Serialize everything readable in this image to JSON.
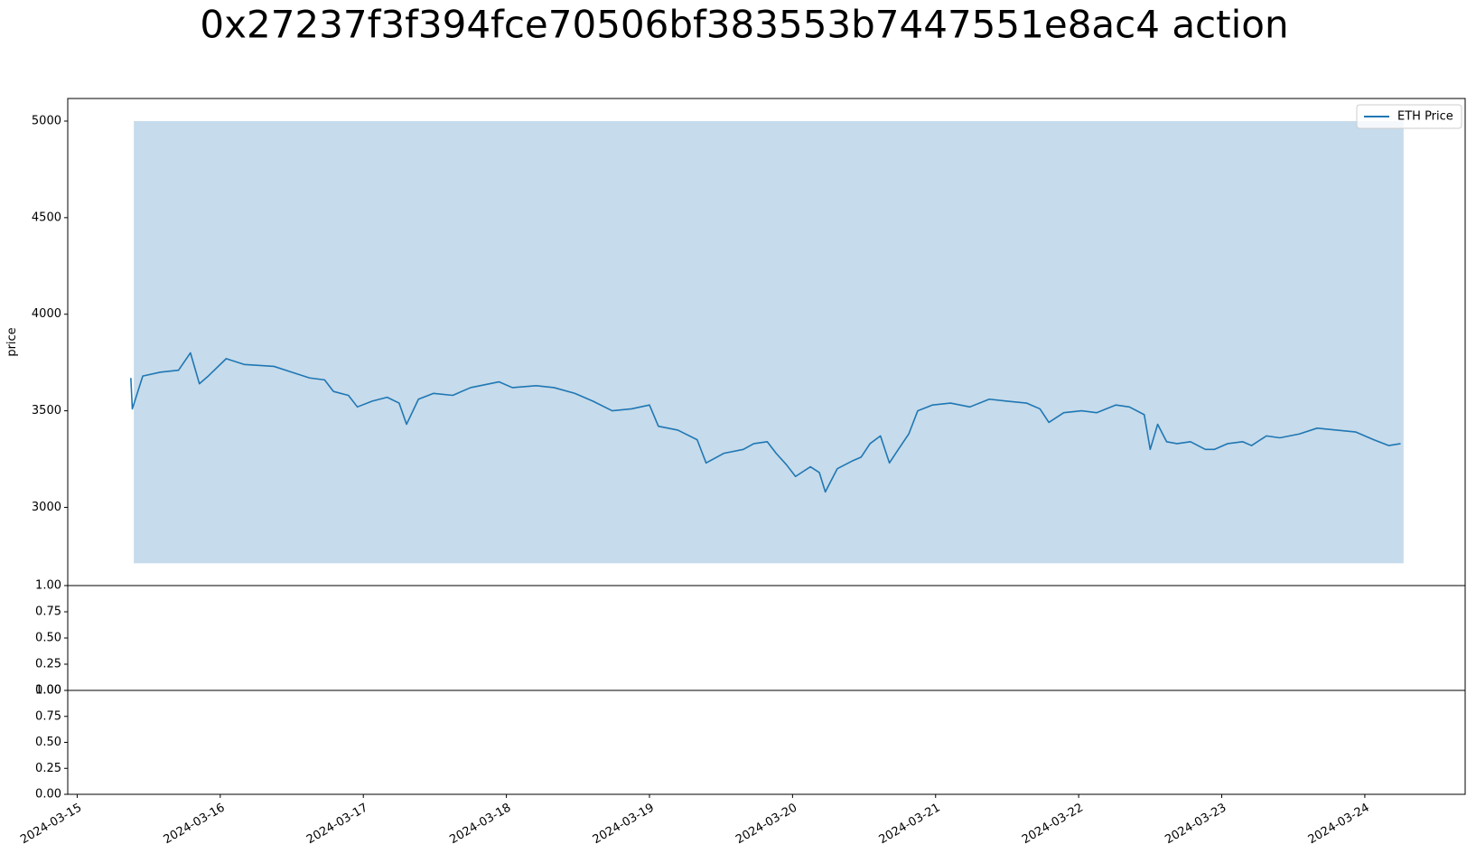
{
  "title": "0x27237f3f394fce70506bf383553b7447551e8ac4 action",
  "chart_data": [
    {
      "type": "line",
      "ylabel": "price",
      "xlim": [
        "2024-03-14T22:25",
        "2024-03-24T16:50"
      ],
      "ylim": [
        2595,
        5117
      ],
      "yticks": [
        3000,
        3500,
        4000,
        4500,
        5000
      ],
      "legend": "upper right",
      "fill": {
        "x": [
          "2024-03-15T09:30",
          "2024-03-24T06:30"
        ],
        "y1": [
          2710,
          2710
        ],
        "y2": [
          5000,
          5000
        ],
        "color": "#c6dbeb"
      },
      "series": [
        {
          "name": "ETH Price",
          "color": "#1f77b4",
          "x": [
            "2024-03-15T09:00",
            "2024-03-15T09:15",
            "2024-03-15T11:00",
            "2024-03-15T14:00",
            "2024-03-15T17:00",
            "2024-03-15T19:00",
            "2024-03-15T20:30",
            "2024-03-15T22:00",
            "2024-03-16T01:00",
            "2024-03-16T04:00",
            "2024-03-16T09:00",
            "2024-03-16T12:00",
            "2024-03-16T15:00",
            "2024-03-16T17:30",
            "2024-03-16T19:00",
            "2024-03-16T21:30",
            "2024-03-16T23:00",
            "2024-03-17T01:30",
            "2024-03-17T04:00",
            "2024-03-17T06:00",
            "2024-03-17T07:15",
            "2024-03-17T09:15",
            "2024-03-17T11:45",
            "2024-03-17T15:00",
            "2024-03-17T18:00",
            "2024-03-17T22:45",
            "2024-03-18T01:00",
            "2024-03-18T05:00",
            "2024-03-18T08:00",
            "2024-03-18T11:30",
            "2024-03-18T14:30",
            "2024-03-18T17:45",
            "2024-03-18T21:00",
            "2024-03-19T00:00",
            "2024-03-19T01:30",
            "2024-03-19T04:45",
            "2024-03-19T08:00",
            "2024-03-19T09:30",
            "2024-03-19T12:30",
            "2024-03-19T15:45",
            "2024-03-19T17:30",
            "2024-03-19T19:45",
            "2024-03-19T21:15",
            "2024-03-19T23:00",
            "2024-03-20T00:30",
            "2024-03-20T03:00",
            "2024-03-20T04:30",
            "2024-03-20T05:30",
            "2024-03-20T07:30",
            "2024-03-20T10:00",
            "2024-03-20T11:30",
            "2024-03-20T13:00",
            "2024-03-20T14:45",
            "2024-03-20T16:15",
            "2024-03-20T17:45",
            "2024-03-20T19:30",
            "2024-03-20T21:00",
            "2024-03-20T23:30",
            "2024-03-21T02:30",
            "2024-03-21T05:45",
            "2024-03-21T09:00",
            "2024-03-21T12:00",
            "2024-03-21T15:15",
            "2024-03-21T17:30",
            "2024-03-21T19:00",
            "2024-03-21T21:30",
            "2024-03-22T00:30",
            "2024-03-22T03:00",
            "2024-03-22T06:15",
            "2024-03-22T08:30",
            "2024-03-22T11:00",
            "2024-03-22T12:00",
            "2024-03-22T13:15",
            "2024-03-22T14:45",
            "2024-03-22T16:30",
            "2024-03-22T18:45",
            "2024-03-22T21:15",
            "2024-03-22T22:45",
            "2024-03-23T01:00",
            "2024-03-23T03:30",
            "2024-03-23T05:00",
            "2024-03-23T07:30",
            "2024-03-23T09:45",
            "2024-03-23T13:00",
            "2024-03-23T16:00",
            "2024-03-23T19:15",
            "2024-03-23T22:30",
            "2024-03-24T01:30",
            "2024-03-24T04:00",
            "2024-03-24T06:00"
          ],
          "values": [
            3670,
            3510,
            3680,
            3700,
            3710,
            3800,
            3640,
            3680,
            3770,
            3740,
            3730,
            3700,
            3670,
            3660,
            3600,
            3580,
            3520,
            3550,
            3570,
            3540,
            3430,
            3560,
            3590,
            3580,
            3620,
            3650,
            3620,
            3630,
            3620,
            3590,
            3550,
            3500,
            3510,
            3530,
            3420,
            3400,
            3350,
            3230,
            3280,
            3300,
            3330,
            3340,
            3280,
            3220,
            3160,
            3210,
            3180,
            3080,
            3200,
            3240,
            3260,
            3330,
            3370,
            3230,
            3300,
            3380,
            3500,
            3530,
            3540,
            3520,
            3560,
            3550,
            3540,
            3510,
            3440,
            3490,
            3500,
            3490,
            3530,
            3520,
            3480,
            3300,
            3430,
            3340,
            3330,
            3340,
            3300,
            3300,
            3330,
            3340,
            3320,
            3370,
            3360,
            3380,
            3410,
            3400,
            3390,
            3350,
            3320,
            3330
          ]
        }
      ]
    },
    {
      "type": "line",
      "xlim": [
        "2024-03-14T22:25",
        "2024-03-24T16:50"
      ],
      "ylim": [
        0,
        1
      ],
      "yticks": [
        {
          "value": 0,
          "label": "0.00"
        },
        {
          "value": 0.25,
          "label": "0.25"
        },
        {
          "value": 0.5,
          "label": "0.50"
        },
        {
          "value": 0.75,
          "label": "0.75"
        },
        {
          "value": 1,
          "label": "1.00"
        }
      ]
    },
    {
      "type": "line",
      "xlim": [
        "2024-03-14T22:25",
        "2024-03-24T16:50"
      ],
      "ylim": [
        0,
        1
      ],
      "yticks": [
        {
          "value": 0,
          "label": "0.00"
        },
        {
          "value": 0.25,
          "label": "0.25"
        },
        {
          "value": 0.5,
          "label": "0.50"
        },
        {
          "value": 0.75,
          "label": "0.75"
        },
        {
          "value": 1,
          "label": "1.00"
        }
      ],
      "xticks": [
        "2024-03-15",
        "2024-03-16",
        "2024-03-17",
        "2024-03-18",
        "2024-03-19",
        "2024-03-20",
        "2024-03-21",
        "2024-03-22",
        "2024-03-23",
        "2024-03-24"
      ]
    }
  ]
}
